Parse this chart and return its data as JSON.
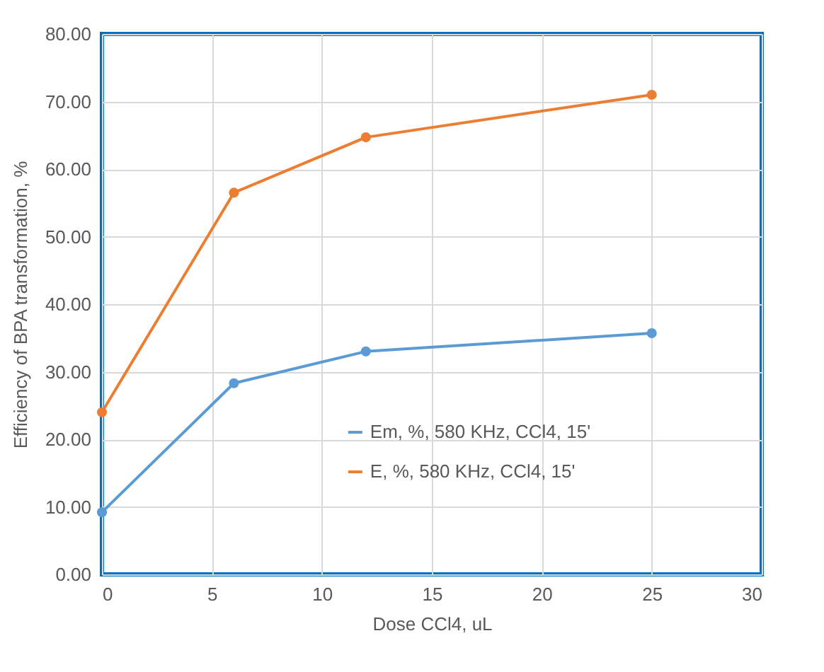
{
  "chart_data": {
    "type": "line",
    "xlabel": "Dose CCl4, uL",
    "ylabel": "Efficiency of BPA transformation, %",
    "x": [
      0,
      6,
      12,
      25
    ],
    "series": [
      {
        "name": "Em, %, 580 KHz, CCl4, 15'",
        "color": "#5b9bd5",
        "values": [
          9.2,
          28.3,
          33.0,
          35.7
        ]
      },
      {
        "name": "E, %, 580 KHz, CCl4, 15'",
        "color": "#ed7d31",
        "values": [
          24.0,
          56.5,
          64.7,
          71.0
        ]
      }
    ],
    "xlim": [
      0,
      30
    ],
    "xticks": [
      0,
      5,
      10,
      15,
      20,
      25,
      30
    ],
    "ylim": [
      0,
      80
    ],
    "yticks": [
      {
        "value": 0,
        "label": "0.00"
      },
      {
        "value": 10,
        "label": "10.00"
      },
      {
        "value": 20,
        "label": "20.00"
      },
      {
        "value": 30,
        "label": "30.00"
      },
      {
        "value": 40,
        "label": "40.00"
      },
      {
        "value": 50,
        "label": "50.00"
      },
      {
        "value": 60,
        "label": "60.00"
      },
      {
        "value": 70,
        "label": "70.00"
      },
      {
        "value": 80,
        "label": "80.00"
      }
    ],
    "grid": true,
    "legend": "bottom right",
    "marker": "circle",
    "line_style": "solid"
  }
}
